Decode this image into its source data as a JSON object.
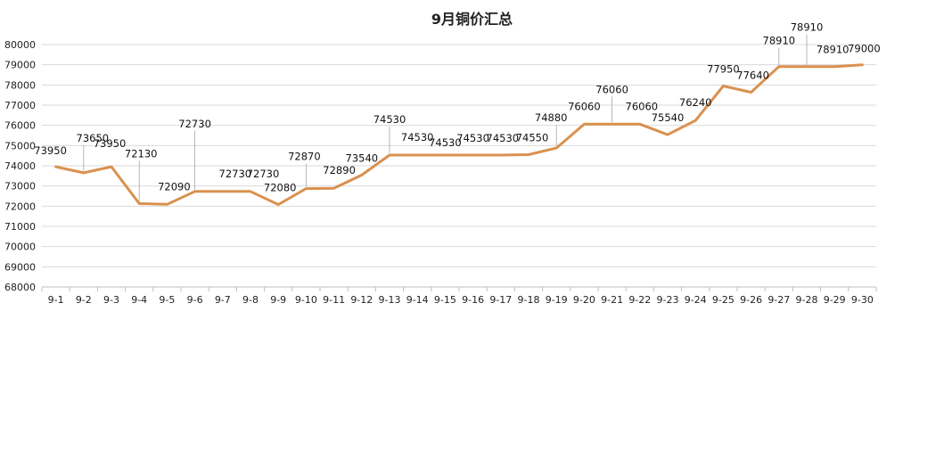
{
  "chart_data": {
    "type": "line",
    "title": "9月铜价汇总",
    "xlabel": "",
    "ylabel": "",
    "ylim": [
      68000,
      80000
    ],
    "ytick_step": 1000,
    "grid": true,
    "legend": "none",
    "line_color": "#D9914F",
    "grid_color": "#D9D9D9",
    "categories": [
      "9-1",
      "9-2",
      "9-3",
      "9-4",
      "9-5",
      "9-6",
      "9-7",
      "9-8",
      "9-9",
      "9-10",
      "9-11",
      "9-12",
      "9-13",
      "9-14",
      "9-15",
      "9-16",
      "9-17",
      "9-18",
      "9-19",
      "9-20",
      "9-21",
      "9-22",
      "9-23",
      "9-24",
      "9-25",
      "9-26",
      "9-27",
      "9-28",
      "9-29",
      "9-30"
    ],
    "series": [
      {
        "values": [
          73950,
          73650,
          73950,
          72130,
          72090,
          72730,
          72730,
          72730,
          72080,
          72870,
          72890,
          73540,
          74530,
          74530,
          74530,
          74530,
          74530,
          74550,
          74880,
          76060,
          76060,
          76060,
          75540,
          76240,
          77950,
          77640,
          78910,
          78910,
          78910,
          79000
        ]
      }
    ]
  }
}
